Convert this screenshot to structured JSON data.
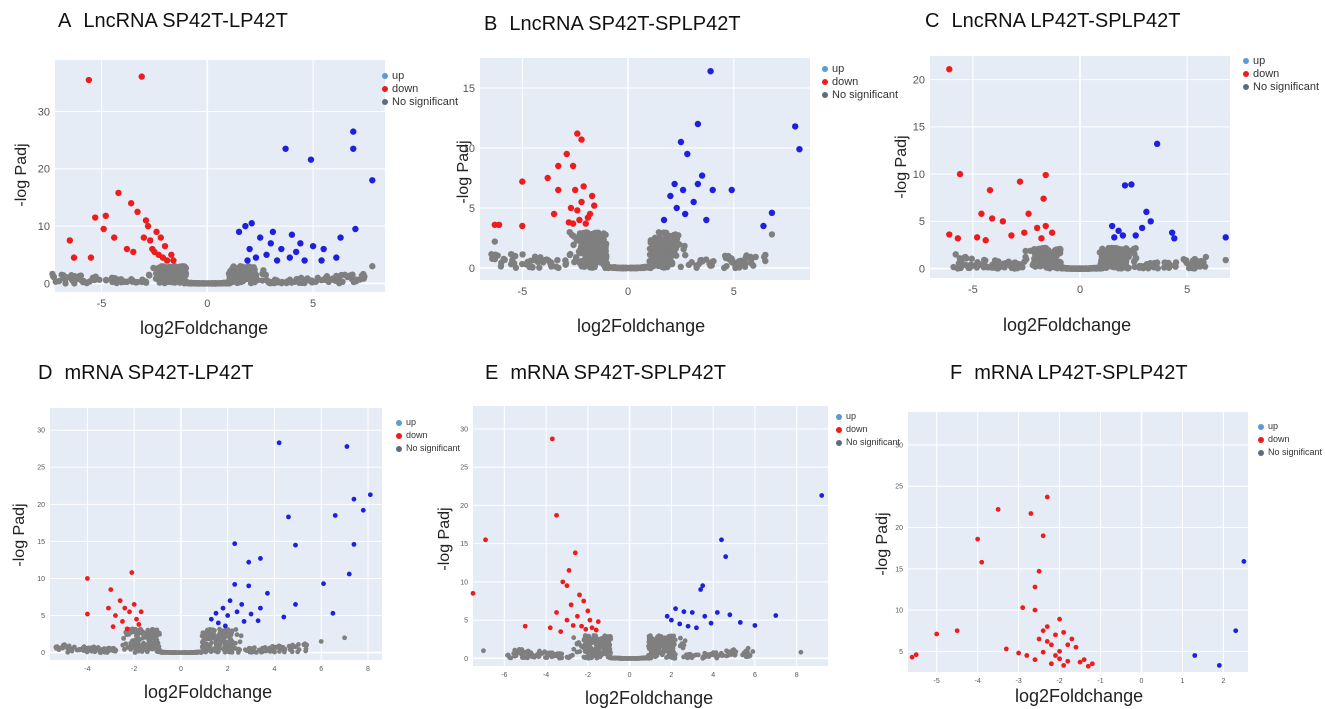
{
  "colors": {
    "up": "#1f1fe0",
    "down": "#ee1c1c",
    "ns": "#7f7f7f",
    "bg": "#e5ecf6",
    "grid": "#ffffff",
    "legend_up": "#5b9bd5",
    "legend_ns": "#5d6d7e"
  },
  "legend": {
    "up": "up",
    "down": "down",
    "ns": "No significant"
  },
  "chart_data": [
    {
      "id": "A",
      "letter": "A",
      "title": "LncRNA SP42T-LP42T",
      "type": "scatter",
      "xlabel": "log2Foldchange",
      "ylabel": "-log Padj",
      "xlim": [
        -7.2,
        8.4
      ],
      "ylim": [
        -1.5,
        39
      ],
      "xticks": [
        -5,
        0,
        5
      ],
      "yticks": [
        0,
        10,
        20,
        30
      ],
      "tick_font": 11,
      "down": [
        [
          -5.6,
          35.5
        ],
        [
          -3.1,
          36.1
        ],
        [
          -6.5,
          7.5
        ],
        [
          -5.3,
          11.5
        ],
        [
          -4.8,
          11.8
        ],
        [
          -4.2,
          15.8
        ],
        [
          -3.6,
          14
        ],
        [
          -4.4,
          8
        ],
        [
          -3.8,
          6
        ],
        [
          -3,
          8
        ],
        [
          -2.6,
          6
        ],
        [
          -2.5,
          5.5
        ],
        [
          -2.3,
          5
        ],
        [
          -2.1,
          4.5
        ],
        [
          -1.9,
          4
        ],
        [
          -2.8,
          10
        ],
        [
          -2.2,
          8
        ],
        [
          -6.3,
          4.5
        ],
        [
          -5.5,
          4.5
        ],
        [
          -4.9,
          9.5
        ],
        [
          -3.3,
          12.5
        ],
        [
          -2.9,
          11
        ],
        [
          -2.4,
          9
        ],
        [
          -2.0,
          6.5
        ],
        [
          -1.7,
          5
        ],
        [
          -3.5,
          5.5
        ],
        [
          -2.7,
          7.5
        ],
        [
          -1.6,
          4
        ]
      ],
      "up": [
        [
          3.7,
          23.5
        ],
        [
          4.9,
          21.6
        ],
        [
          6.9,
          26.5
        ],
        [
          6.9,
          23.5
        ],
        [
          7.8,
          18
        ],
        [
          7,
          9.5
        ],
        [
          6.3,
          8
        ],
        [
          1.5,
          9
        ],
        [
          1.8,
          10
        ],
        [
          2.1,
          10.5
        ],
        [
          2.5,
          8
        ],
        [
          3.0,
          7
        ],
        [
          3.5,
          6
        ],
        [
          4.0,
          8.5
        ],
        [
          4.4,
          7
        ],
        [
          5.0,
          6.5
        ],
        [
          5.5,
          6
        ],
        [
          1.9,
          4
        ],
        [
          2.3,
          4.5
        ],
        [
          2.8,
          5
        ],
        [
          3.3,
          4
        ],
        [
          3.9,
          4.5
        ],
        [
          4.6,
          4
        ],
        [
          5.4,
          4
        ],
        [
          6.1,
          4.5
        ],
        [
          2.0,
          6
        ],
        [
          3.1,
          9
        ],
        [
          4.2,
          5.5
        ]
      ],
      "ns": {
        "spread": 6.5,
        "min_fold": 1.0,
        "ymax": 3.0,
        "count": 520,
        "outliers": [
          [
            7.8,
            3
          ],
          [
            -6.8,
            1
          ],
          [
            6.5,
            1.5
          ]
        ]
      }
    },
    {
      "id": "B",
      "letter": "B",
      "title": "LncRNA SP42T-SPLP42T",
      "type": "scatter",
      "xlabel": "log2Foldchange",
      "ylabel": "-log Padj",
      "xlim": [
        -7,
        8.6
      ],
      "ylim": [
        -1,
        17.5
      ],
      "xticks": [
        -5,
        0,
        5
      ],
      "yticks": [
        0,
        5,
        10,
        15
      ],
      "tick_font": 11,
      "down": [
        [
          -2.4,
          11.2
        ],
        [
          -2.2,
          10.7
        ],
        [
          -2.9,
          9.5
        ],
        [
          -2.6,
          8.5
        ],
        [
          -3.3,
          8.5
        ],
        [
          -5.0,
          7.2
        ],
        [
          -3.8,
          7.5
        ],
        [
          -3.3,
          6.5
        ],
        [
          -2.5,
          6.5
        ],
        [
          -2.1,
          6.8
        ],
        [
          -1.7,
          6
        ],
        [
          -2.7,
          5
        ],
        [
          -2.2,
          5.5
        ],
        [
          -1.8,
          4.5
        ],
        [
          -2.3,
          4
        ],
        [
          -2.6,
          3.7
        ],
        [
          -2,
          3.7
        ],
        [
          -6.3,
          3.6
        ],
        [
          -6.1,
          3.6
        ],
        [
          -5,
          3.5
        ],
        [
          -3.5,
          4.5
        ],
        [
          -1.6,
          5.2
        ],
        [
          -2.8,
          3.8
        ],
        [
          -1.9,
          4.2
        ],
        [
          -2.4,
          4.8
        ]
      ],
      "up": [
        [
          3.9,
          16.4
        ],
        [
          3.3,
          12
        ],
        [
          2.5,
          10.5
        ],
        [
          2.8,
          9.5
        ],
        [
          3.5,
          7.7
        ],
        [
          3.3,
          7
        ],
        [
          2.6,
          6.5
        ],
        [
          2.0,
          6
        ],
        [
          2.3,
          5
        ],
        [
          3.1,
          5.5
        ],
        [
          4.9,
          6.5
        ],
        [
          7.9,
          11.8
        ],
        [
          8.1,
          9.9
        ],
        [
          6.8,
          4.6
        ],
        [
          6.4,
          3.5
        ],
        [
          1.7,
          4
        ],
        [
          2.7,
          4.5
        ],
        [
          3.7,
          4
        ],
        [
          4.0,
          6.5
        ],
        [
          2.2,
          7
        ]
      ],
      "ns": {
        "spread": 5.5,
        "min_fold": 1.0,
        "ymax": 3.0,
        "count": 520,
        "outliers": [
          [
            6.8,
            2.8
          ],
          [
            -6.3,
            2.2
          ]
        ]
      }
    },
    {
      "id": "C",
      "letter": "C",
      "title": "LncRNA LP42T-SPLP42T",
      "type": "scatter",
      "xlabel": "log2Foldchange",
      "ylabel": "-log Padj",
      "xlim": [
        -7,
        7
      ],
      "ylim": [
        -1,
        22.5
      ],
      "xticks": [
        -5,
        0,
        5
      ],
      "yticks": [
        0,
        5,
        10,
        15,
        20
      ],
      "tick_font": 11,
      "down": [
        [
          -6.1,
          21.1
        ],
        [
          -5.6,
          10
        ],
        [
          -4.2,
          8.3
        ],
        [
          -2.8,
          9.2
        ],
        [
          -1.6,
          9.9
        ],
        [
          -1.7,
          7.4
        ],
        [
          -4.6,
          5.8
        ],
        [
          -4.1,
          5.3
        ],
        [
          -2.4,
          5.8
        ],
        [
          -3.6,
          5
        ],
        [
          -2,
          4.3
        ],
        [
          -1.6,
          4.5
        ],
        [
          -1.3,
          3.8
        ],
        [
          -6.1,
          3.6
        ],
        [
          -5.7,
          3.2
        ],
        [
          -4.8,
          3.3
        ],
        [
          -3.2,
          3.5
        ],
        [
          -2.6,
          3.8
        ],
        [
          -4.4,
          3
        ],
        [
          -1.8,
          3.2
        ]
      ],
      "up": [
        [
          3.6,
          13.2
        ],
        [
          2.1,
          8.8
        ],
        [
          2.4,
          8.9
        ],
        [
          3.1,
          6
        ],
        [
          3.3,
          5
        ],
        [
          1.5,
          4.5
        ],
        [
          1.8,
          4
        ],
        [
          2.0,
          3.5
        ],
        [
          2.6,
          3.5
        ],
        [
          4.3,
          3.8
        ],
        [
          4.4,
          3.2
        ],
        [
          6.8,
          3.3
        ],
        [
          1.6,
          3.3
        ],
        [
          2.9,
          4.3
        ]
      ],
      "ns": {
        "spread": 5.0,
        "min_fold": 0.9,
        "ymax": 2.2,
        "count": 520,
        "outliers": [
          [
            6.8,
            0.9
          ],
          [
            -5.8,
            1.5
          ]
        ]
      }
    },
    {
      "id": "D",
      "letter": "D",
      "title": "mRNA SP42T-LP42T",
      "type": "scatter",
      "xlabel": "log2Foldchange",
      "ylabel": "-log Padj",
      "xlim": [
        -5.6,
        8.6
      ],
      "ylim": [
        -1,
        33
      ],
      "xticks": [
        -4,
        -2,
        0,
        2,
        4,
        6,
        8
      ],
      "yticks": [
        0,
        5,
        10,
        15,
        20,
        25,
        30
      ],
      "tick_font": 7,
      "down": [
        [
          -4,
          10
        ],
        [
          -4,
          5.2
        ],
        [
          -3,
          8.5
        ],
        [
          -2.1,
          10.8
        ],
        [
          -2.6,
          7
        ],
        [
          -2.4,
          6
        ],
        [
          -3.1,
          6
        ],
        [
          -2.8,
          5
        ],
        [
          -2.2,
          5.5
        ],
        [
          -1.9,
          4.5
        ],
        [
          -2.0,
          6.5
        ],
        [
          -1.7,
          5.5
        ],
        [
          -2.5,
          4.2
        ],
        [
          -1.8,
          3.8
        ],
        [
          -2.9,
          3.5
        ],
        [
          -2.3,
          3.2
        ]
      ],
      "up": [
        [
          4.2,
          28.3
        ],
        [
          7.1,
          27.8
        ],
        [
          8.1,
          21.3
        ],
        [
          7.4,
          20.7
        ],
        [
          7.8,
          19.2
        ],
        [
          4.6,
          18.3
        ],
        [
          6.6,
          18.5
        ],
        [
          4.9,
          14.5
        ],
        [
          7.4,
          14.6
        ],
        [
          2.3,
          14.7
        ],
        [
          2.9,
          12.2
        ],
        [
          3.4,
          12.7
        ],
        [
          2.3,
          9.2
        ],
        [
          2.9,
          9
        ],
        [
          3.7,
          8
        ],
        [
          6.1,
          9.3
        ],
        [
          7.2,
          10.6
        ],
        [
          3.4,
          6
        ],
        [
          4.9,
          6.5
        ],
        [
          6.5,
          5.3
        ],
        [
          1.3,
          4.5
        ],
        [
          1.6,
          4
        ],
        [
          2.0,
          5
        ],
        [
          2.4,
          5.5
        ],
        [
          2.7,
          4.2
        ],
        [
          3.0,
          5.2
        ],
        [
          1.8,
          6
        ],
        [
          2.1,
          7
        ],
        [
          2.6,
          6.5
        ],
        [
          3.3,
          4.3
        ],
        [
          4.4,
          4.8
        ],
        [
          1.5,
          5.3
        ],
        [
          1.9,
          3.6
        ]
      ],
      "ns": {
        "spread": 4.5,
        "min_fold": 0.9,
        "ymax": 3.2,
        "count": 520,
        "outliers": [
          [
            -5.3,
            0.8
          ],
          [
            7,
            2
          ],
          [
            6,
            1.5
          ]
        ]
      }
    },
    {
      "id": "E",
      "letter": "E",
      "title": "mRNA SP42T-SPLP42T",
      "type": "scatter",
      "xlabel": "log2Foldchange",
      "ylabel": "-log Padj",
      "xlim": [
        -7.5,
        9.5
      ],
      "ylim": [
        -1,
        33
      ],
      "xticks": [
        -6,
        -4,
        -2,
        0,
        2,
        4,
        6,
        8
      ],
      "yticks": [
        0,
        5,
        10,
        15,
        20,
        25,
        30
      ],
      "tick_font": 7,
      "down": [
        [
          -3.7,
          28.7
        ],
        [
          -3.5,
          18.7
        ],
        [
          -6.9,
          15.5
        ],
        [
          -2.6,
          13.8
        ],
        [
          -2.9,
          11.5
        ],
        [
          -3.2,
          10
        ],
        [
          -3.0,
          9.5
        ],
        [
          -7.5,
          8.5
        ],
        [
          -2.4,
          8.3
        ],
        [
          -2.8,
          7
        ],
        [
          -2.2,
          7.5
        ],
        [
          -3.5,
          6
        ],
        [
          -2.0,
          6.2
        ],
        [
          -3.0,
          5
        ],
        [
          -2.5,
          5.5
        ],
        [
          -1.9,
          5
        ],
        [
          -2.7,
          4.3
        ],
        [
          -2.3,
          4.2
        ],
        [
          -1.8,
          4
        ],
        [
          -1.6,
          3.7
        ],
        [
          -3.8,
          4
        ],
        [
          -5.0,
          4.2
        ],
        [
          -1.5,
          4.8
        ],
        [
          -2.1,
          3.8
        ],
        [
          -3.3,
          3.5
        ]
      ],
      "up": [
        [
          9.2,
          21.3
        ],
        [
          4.4,
          15.5
        ],
        [
          4.6,
          13.3
        ],
        [
          3.5,
          9.5
        ],
        [
          3.4,
          9
        ],
        [
          2.2,
          6.5
        ],
        [
          2.6,
          6.1
        ],
        [
          3.0,
          6
        ],
        [
          1.8,
          5.5
        ],
        [
          2.0,
          5
        ],
        [
          2.4,
          4.5
        ],
        [
          2.8,
          4.2
        ],
        [
          3.2,
          4
        ],
        [
          3.6,
          5.5
        ],
        [
          4.2,
          6
        ],
        [
          4.8,
          5.7
        ],
        [
          5.3,
          4.7
        ],
        [
          6.0,
          4.3
        ],
        [
          7.0,
          5.6
        ],
        [
          3.9,
          4.6
        ]
      ],
      "ns": {
        "spread": 5.0,
        "min_fold": 0.9,
        "ymax": 3.0,
        "count": 520,
        "outliers": [
          [
            8.2,
            0.8
          ],
          [
            -7,
            1
          ]
        ]
      }
    },
    {
      "id": "F",
      "letter": "F",
      "title": "mRNA LP42T-SPLP42T",
      "type": "scatter",
      "xlabel": "log2Foldchange",
      "ylabel": "-log Padj",
      "xlim": [
        -5.7,
        2.6
      ],
      "ylim": [
        2.5,
        34
      ],
      "xticks": [
        -5,
        -4,
        -3,
        -2,
        -1,
        0,
        1,
        2
      ],
      "yticks": [
        5,
        10,
        15,
        20,
        25,
        30
      ],
      "tick_font": 7,
      "down": [
        [
          -2.3,
          23.7
        ],
        [
          -3.5,
          22.2
        ],
        [
          -2.7,
          21.7
        ],
        [
          -4.0,
          18.6
        ],
        [
          -2.4,
          19
        ],
        [
          -3.9,
          15.8
        ],
        [
          -2.5,
          14.7
        ],
        [
          -2.6,
          12.8
        ],
        [
          -2.9,
          10.3
        ],
        [
          -2.6,
          10
        ],
        [
          -2.0,
          8.9
        ],
        [
          -4.5,
          7.5
        ],
        [
          -5.0,
          7.1
        ],
        [
          -2.3,
          8
        ],
        [
          -2.4,
          7.5
        ],
        [
          -1.9,
          7.3
        ],
        [
          -2.1,
          7
        ],
        [
          -1.7,
          6.5
        ],
        [
          -2.5,
          6.5
        ],
        [
          -2.3,
          6.2
        ],
        [
          -1.8,
          5.8
        ],
        [
          -2.2,
          5.8
        ],
        [
          -3.3,
          5.3
        ],
        [
          -1.6,
          5.5
        ],
        [
          -2.0,
          5
        ],
        [
          -2.4,
          4.9
        ],
        [
          -2.8,
          4.5
        ],
        [
          -5.5,
          4.6
        ],
        [
          -2.6,
          4
        ],
        [
          -2.0,
          4.1
        ],
        [
          -1.8,
          3.8
        ],
        [
          -1.4,
          4
        ],
        [
          -1.2,
          3.5
        ],
        [
          -5.6,
          4.3
        ],
        [
          -1.5,
          3.7
        ],
        [
          -2.2,
          3.5
        ],
        [
          -1.3,
          3.2
        ],
        [
          -1.9,
          3.3
        ],
        [
          -2.1,
          4.5
        ],
        [
          -3.0,
          4.8
        ]
      ],
      "up": [
        [
          2.5,
          15.9
        ],
        [
          2.3,
          7.5
        ],
        [
          1.9,
          3.3
        ],
        [
          1.3,
          4.5
        ]
      ],
      "ns": {
        "spread": 0,
        "min_fold": 0,
        "ymax": 0,
        "count": 0,
        "outliers": []
      }
    }
  ]
}
